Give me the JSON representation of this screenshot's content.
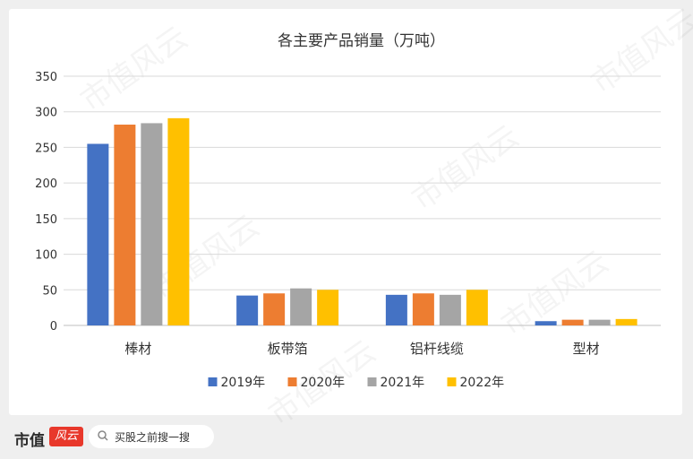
{
  "chart_data": {
    "type": "bar",
    "title": "各主要产品销量（万吨）",
    "categories": [
      "棒材",
      "板带箔",
      "铝杆线缆",
      "型材"
    ],
    "series": [
      {
        "name": "2019年",
        "color": "#4472c4",
        "values": [
          255,
          42,
          43,
          6
        ]
      },
      {
        "name": "2020年",
        "color": "#ed7d31",
        "values": [
          282,
          45,
          45,
          8
        ]
      },
      {
        "name": "2021年",
        "color": "#a5a5a5",
        "values": [
          284,
          52,
          43,
          8
        ]
      },
      {
        "name": "2022年",
        "color": "#ffc000",
        "values": [
          291,
          50,
          50,
          9
        ]
      }
    ],
    "ylim": [
      0,
      350
    ],
    "yticks": [
      0,
      50,
      100,
      150,
      200,
      250,
      300,
      350
    ],
    "grid": true,
    "legend": "bottom"
  },
  "watermark": "市值风云",
  "footer": {
    "brand": "市值",
    "search_text": "买股之前搜一搜"
  }
}
